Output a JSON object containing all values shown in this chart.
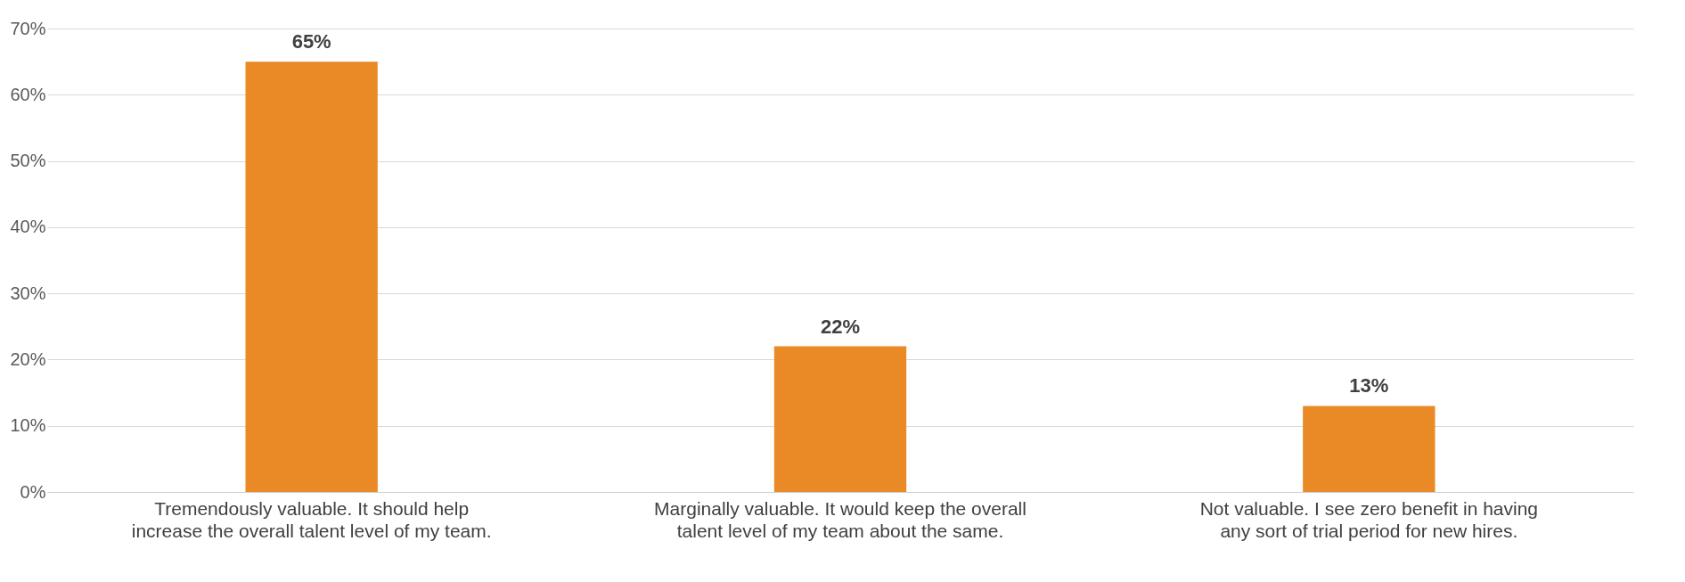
{
  "chart_data": {
    "type": "bar",
    "categories": [
      "Tremendously valuable. It should help increase the overall talent level of my team.",
      "Marginally valuable. It would keep the overall talent level of my team about the same.",
      "Not valuable. I see zero benefit in having any sort of trial period for new hires."
    ],
    "values": [
      65,
      22,
      13
    ],
    "value_labels": [
      "65%",
      "22%",
      "13%"
    ],
    "color": "#e98a26",
    "ylim": [
      0,
      70
    ],
    "yticks": [
      {
        "value": 0,
        "label": "0%"
      },
      {
        "value": 10,
        "label": "10%"
      },
      {
        "value": 20,
        "label": "20%"
      },
      {
        "value": 30,
        "label": "30%"
      },
      {
        "value": 40,
        "label": "40%"
      },
      {
        "value": 50,
        "label": "50%"
      },
      {
        "value": 60,
        "label": "60%"
      },
      {
        "value": 70,
        "label": "70%"
      }
    ],
    "grid": true
  }
}
